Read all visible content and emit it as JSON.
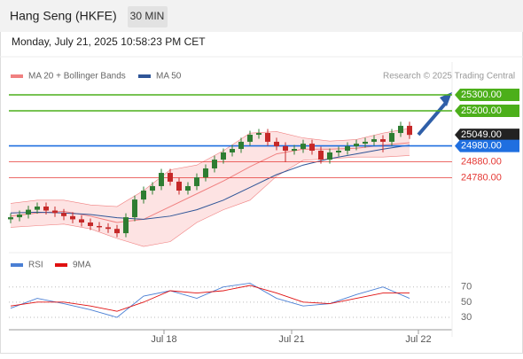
{
  "header": {
    "title": "Hang Seng (HKFE)",
    "timeframe": "30 MIN",
    "datetime": "Monday, July 21, 2025 10:58:23 PM CET"
  },
  "chart_data": [
    {
      "type": "candlestick",
      "x": [
        0,
        1,
        2,
        3,
        4,
        5,
        6,
        7,
        8,
        9,
        10,
        11,
        12,
        13,
        14,
        15,
        16,
        17,
        18,
        19,
        20,
        21,
        22,
        23,
        24,
        25,
        26,
        27,
        28,
        29,
        30,
        31,
        32,
        33,
        34,
        35,
        36,
        37,
        38,
        39,
        40,
        41,
        42,
        43,
        44,
        45
      ],
      "open": [
        24520,
        24533,
        24550,
        24580,
        24600,
        24575,
        24560,
        24540,
        24520,
        24500,
        24478,
        24470,
        24460,
        24433,
        24533,
        24644,
        24700,
        24728,
        24811,
        24756,
        24700,
        24728,
        24783,
        24839,
        24894,
        24939,
        24961,
        25006,
        25050,
        25061,
        25006,
        24978,
        24950,
        24961,
        24994,
        24950,
        24894,
        24939,
        24950,
        24978,
        24994,
        25006,
        25022,
        25006,
        25061,
        25106
      ],
      "high": [
        24558,
        24575,
        24605,
        24625,
        24625,
        24600,
        24585,
        24565,
        24545,
        24525,
        24503,
        24495,
        24485,
        24558,
        24669,
        24725,
        24753,
        24836,
        24836,
        24781,
        24753,
        24808,
        24864,
        24919,
        24964,
        24986,
        25031,
        25075,
        25086,
        25086,
        25031,
        25003,
        24986,
        25019,
        25019,
        24975,
        24964,
        24975,
        25003,
        25019,
        25031,
        25047,
        25047,
        25086,
        25131,
        25131
      ],
      "low": [
        24495,
        24508,
        24525,
        24555,
        24550,
        24535,
        24515,
        24495,
        24475,
        24453,
        24445,
        24435,
        24408,
        24408,
        24508,
        24619,
        24675,
        24703,
        24731,
        24675,
        24675,
        24703,
        24758,
        24814,
        24869,
        24914,
        24936,
        24981,
        25025,
        24981,
        24953,
        24880,
        24925,
        24936,
        24925,
        24869,
        24869,
        24914,
        24925,
        24953,
        24969,
        24981,
        24940,
        24981,
        25036,
        25024
      ],
      "close": [
        24533,
        24550,
        24580,
        24600,
        24575,
        24560,
        24540,
        24520,
        24500,
        24478,
        24470,
        24460,
        24433,
        24533,
        24644,
        24700,
        24728,
        24811,
        24756,
        24700,
        24728,
        24783,
        24839,
        24894,
        24939,
        24961,
        25006,
        25050,
        25061,
        25006,
        24978,
        24950,
        24961,
        24994,
        24950,
        24894,
        24939,
        24950,
        24978,
        24994,
        25006,
        25022,
        25006,
        25061,
        25106,
        25049
      ],
      "up_color": "#2e7d32",
      "down_color": "#c62828",
      "xlim": [
        -0.2,
        49.8
      ],
      "ylim": [
        24339,
        25450
      ],
      "overlays": [
        {
          "name": "MA 20 + Bollinger Bands",
          "color": "#f08080",
          "band_color": "#fde3e3",
          "x": [
            0,
            3,
            6,
            9,
            12,
            15,
            18,
            21,
            24,
            27,
            30,
            33,
            36,
            39,
            42,
            45
          ],
          "values": [
            24540,
            24560,
            24570,
            24540,
            24500,
            24520,
            24600,
            24680,
            24760,
            24850,
            24930,
            24960,
            24960,
            24965,
            24985,
            25000
          ],
          "upper": [
            24620,
            24640,
            24640,
            24610,
            24600,
            24700,
            24830,
            24860,
            24950,
            25060,
            25070,
            25030,
            25010,
            25020,
            25060,
            25090
          ],
          "lower": [
            24470,
            24480,
            24490,
            24460,
            24400,
            24350,
            24380,
            24500,
            24580,
            24640,
            24790,
            24890,
            24900,
            24910,
            24910,
            24920
          ]
        },
        {
          "name": "MA 50",
          "color": "#2f5597",
          "x": [
            0,
            3,
            6,
            9,
            12,
            15,
            18,
            21,
            24,
            27,
            30,
            33,
            36,
            39,
            42,
            45
          ],
          "values": [
            24560,
            24565,
            24560,
            24550,
            24530,
            24520,
            24540,
            24580,
            24640,
            24720,
            24800,
            24860,
            24900,
            24930,
            24960,
            24985
          ]
        }
      ],
      "levels": [
        {
          "value": 25300,
          "label": "25300.00",
          "color": "#4caf1a",
          "filled": true,
          "line": true
        },
        {
          "value": 25200,
          "label": "25200.00",
          "color": "#4caf1a",
          "filled": true,
          "line": true
        },
        {
          "value": 25049,
          "label": "25049.00",
          "color": "#222222",
          "filled": true,
          "line": false
        },
        {
          "value": 24980,
          "label": "24980.00",
          "color": "#1f6fe0",
          "filled": true,
          "line": true
        },
        {
          "value": 24880,
          "label": "24880.00",
          "color": "#e53935",
          "filled": false,
          "line": true
        },
        {
          "value": 24780,
          "label": "24780.00",
          "color": "#e53935",
          "filled": false,
          "line": true
        }
      ],
      "credit": "Research © 2025 Trading Central"
    },
    {
      "type": "line",
      "x": [
        0,
        3,
        6,
        9,
        12,
        15,
        18,
        21,
        24,
        27,
        30,
        33,
        36,
        39,
        42,
        45
      ],
      "series": [
        {
          "name": "RSI",
          "color": "#4a7fd4",
          "values": [
            42,
            55,
            48,
            40,
            30,
            58,
            65,
            55,
            70,
            75,
            55,
            45,
            48,
            60,
            70,
            55
          ]
        },
        {
          "name": "9MA",
          "color": "#e01010",
          "values": [
            45,
            50,
            50,
            45,
            38,
            50,
            65,
            62,
            65,
            72,
            62,
            50,
            48,
            55,
            62,
            62
          ]
        }
      ],
      "xlim": [
        -0.2,
        49.8
      ],
      "ylim": [
        16,
        86
      ],
      "yticks": [
        30,
        50,
        70
      ],
      "grid": true,
      "xticks": [
        {
          "value": 17.3,
          "label": "Jul 18"
        },
        {
          "value": 31.7,
          "label": "Jul 21"
        },
        {
          "value": 46,
          "label": "Jul 22"
        }
      ]
    }
  ]
}
